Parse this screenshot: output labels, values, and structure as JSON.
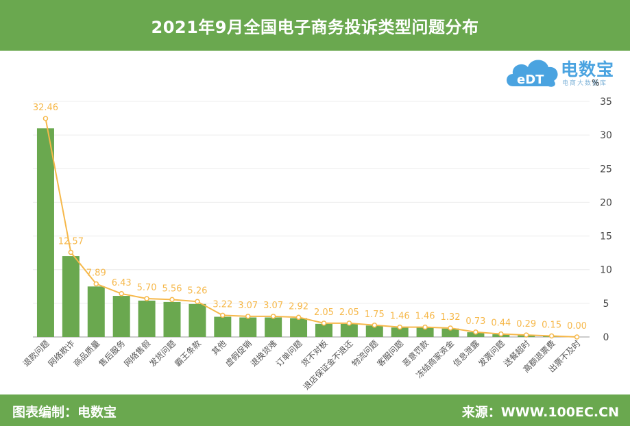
{
  "header": {
    "title": "2021年9月全国电子商务投诉类型问题分布"
  },
  "footer": {
    "left": "图表编制：电数宝",
    "right": "来源：WWW.100EC.CN"
  },
  "logo": {
    "brand": "电数宝",
    "sub": "电商大数据库",
    "mark": "eDT"
  },
  "colors": {
    "bar": "#6aa84f",
    "line": "#f6b84a",
    "label": "#f6b84a",
    "header": "#6aa84f"
  },
  "chart_data": {
    "type": "bar",
    "title": "2021年9月全国电子商务投诉类型问题分布",
    "ylabel": "%",
    "ylim": [
      0,
      35
    ],
    "yticks": [
      0,
      5,
      10,
      15,
      20,
      25,
      30,
      35
    ],
    "y_axis_side": "right",
    "grid": true,
    "categories": [
      "退款问题",
      "网络欺诈",
      "商品质量",
      "售后服务",
      "网络售假",
      "发货问题",
      "霸王条款",
      "其他",
      "虚假促销",
      "退换货难",
      "订单问题",
      "货不对板",
      "退店保证金不退还",
      "物流问题",
      "客服问题",
      "恶意罚款",
      "冻结商家资金",
      "信息泄露",
      "发票问题",
      "送餐超时",
      "高额退票费",
      "出票不及时"
    ],
    "values": [
      32.46,
      12.57,
      7.89,
      6.43,
      5.7,
      5.56,
      5.26,
      3.22,
      3.07,
      3.07,
      2.92,
      2.05,
      2.05,
      1.75,
      1.46,
      1.46,
      1.32,
      0.73,
      0.44,
      0.29,
      0.15,
      0.0
    ],
    "bar_values": [
      31.0,
      12.0,
      7.5,
      6.1,
      5.4,
      5.2,
      4.9,
      3.0,
      2.9,
      2.9,
      2.8,
      1.95,
      1.95,
      1.7,
      1.4,
      1.4,
      1.25,
      0.7,
      0.4,
      0.25,
      0.1,
      0.0
    ],
    "data_labels": [
      "32.46",
      "12.57",
      "7.89",
      "6.43",
      "5.70",
      "5.56",
      "5.26",
      "3.22",
      "3.07",
      "3.07",
      "2.92",
      "2.05",
      "2.05",
      "1.75",
      "1.46",
      "1.46",
      "1.32",
      "0.73",
      "0.44",
      "0.29",
      "0.15",
      "0.00"
    ]
  }
}
